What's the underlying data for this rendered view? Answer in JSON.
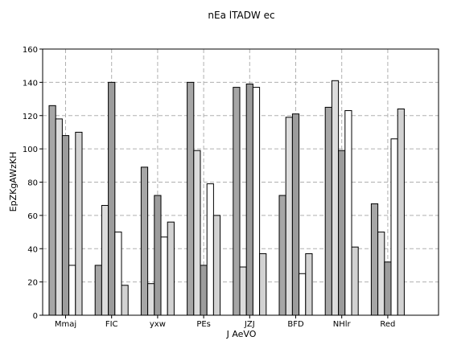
{
  "chart_data": {
    "type": "bar",
    "title": "nEa lTADW ec",
    "xlabel": "J AeVO",
    "ylabel": "EpZKgAWzKH",
    "ylim": [
      0,
      160
    ],
    "yticks": [
      0,
      20,
      40,
      60,
      80,
      100,
      120,
      140,
      160
    ],
    "grid": true,
    "categories": [
      "Mmaj",
      "FIC",
      "yxw",
      "PEs",
      "JZJ",
      "BFD",
      "NHlr",
      "Red"
    ],
    "series": [
      {
        "color": "#a6a6a6",
        "values": [
          126,
          30,
          89,
          140,
          137,
          72,
          125,
          67
        ]
      },
      {
        "color": "#dddddd",
        "values": [
          118,
          66,
          19,
          99,
          29,
          119,
          141,
          50
        ]
      },
      {
        "color": "#9c9c9c",
        "values": [
          108,
          140,
          72,
          30,
          139,
          121,
          99,
          32
        ]
      },
      {
        "color": "#ffffff",
        "values": [
          30,
          50,
          47,
          79,
          137,
          25,
          123,
          106
        ]
      },
      {
        "color": "#d2d2d2",
        "values": [
          110,
          18,
          56,
          60,
          37,
          37,
          41,
          124
        ]
      }
    ]
  }
}
